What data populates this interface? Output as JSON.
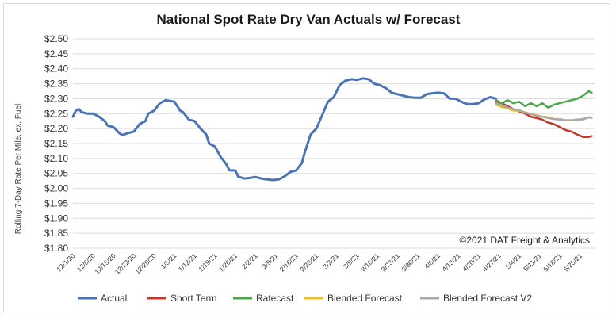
{
  "chart_data": {
    "type": "line",
    "title": "National Spot Rate Dry Van Actuals w/ Forecast",
    "ylabel": "Rolling 7-Day Rate Per Mile, ex. Fuel",
    "xlabel": "",
    "ylim": [
      1.8,
      2.5
    ],
    "y_ticks": [
      "$2.50",
      "$2.45",
      "$2.40",
      "$2.35",
      "$2.30",
      "$2.25",
      "$2.20",
      "$2.15",
      "$2.10",
      "$2.05",
      "$2.00",
      "$1.95",
      "$1.90",
      "$1.85",
      "$1.80"
    ],
    "x_ticks": [
      "12/1/20",
      "12/8/20",
      "12/15/20",
      "12/22/20",
      "12/29/20",
      "1/5/21",
      "1/12/21",
      "1/19/21",
      "1/26/21",
      "2/2/21",
      "2/9/21",
      "2/16/21",
      "2/23/21",
      "3/2/21",
      "3/9/21",
      "3/16/21",
      "3/23/21",
      "3/30/21",
      "4/6/21",
      "4/13/21",
      "4/20/21",
      "4/27/21",
      "5/4/21",
      "5/11/21",
      "5/18/21",
      "5/25/21"
    ],
    "x_start": "12/1/20",
    "x_end": "5/30/21",
    "grid": "horizontal",
    "legend_position": "bottom",
    "annotation": "©2021 DAT Freight & Analytics",
    "series": [
      {
        "name": "Actual",
        "color": "#4a74b4",
        "points": [
          [
            "12/1/20",
            2.24
          ],
          [
            "12/2/20",
            2.26
          ],
          [
            "12/3/20",
            2.265
          ],
          [
            "12/4/20",
            2.255
          ],
          [
            "12/6/20",
            2.25
          ],
          [
            "12/8/20",
            2.25
          ],
          [
            "12/10/20",
            2.24
          ],
          [
            "12/12/20",
            2.225
          ],
          [
            "12/13/20",
            2.21
          ],
          [
            "12/15/20",
            2.205
          ],
          [
            "12/17/20",
            2.185
          ],
          [
            "12/18/20",
            2.178
          ],
          [
            "12/20/20",
            2.185
          ],
          [
            "12/22/20",
            2.19
          ],
          [
            "12/24/20",
            2.215
          ],
          [
            "12/26/20",
            2.225
          ],
          [
            "12/27/20",
            2.25
          ],
          [
            "12/29/20",
            2.26
          ],
          [
            "12/31/20",
            2.285
          ],
          [
            "1/2/21",
            2.295
          ],
          [
            "1/5/21",
            2.29
          ],
          [
            "1/7/21",
            2.26
          ],
          [
            "1/8/21",
            2.255
          ],
          [
            "1/10/21",
            2.23
          ],
          [
            "1/12/21",
            2.225
          ],
          [
            "1/14/21",
            2.2
          ],
          [
            "1/16/21",
            2.18
          ],
          [
            "1/17/21",
            2.15
          ],
          [
            "1/19/21",
            2.14
          ],
          [
            "1/21/21",
            2.105
          ],
          [
            "1/23/21",
            2.08
          ],
          [
            "1/24/21",
            2.06
          ],
          [
            "1/26/21",
            2.06
          ],
          [
            "1/27/21",
            2.04
          ],
          [
            "1/29/21",
            2.033
          ],
          [
            "1/31/21",
            2.035
          ],
          [
            "2/2/21",
            2.038
          ],
          [
            "2/4/21",
            2.033
          ],
          [
            "2/6/21",
            2.03
          ],
          [
            "2/8/21",
            2.028
          ],
          [
            "2/10/21",
            2.03
          ],
          [
            "2/12/21",
            2.04
          ],
          [
            "2/14/21",
            2.055
          ],
          [
            "2/16/21",
            2.06
          ],
          [
            "2/18/21",
            2.085
          ],
          [
            "2/19/21",
            2.12
          ],
          [
            "2/21/21",
            2.18
          ],
          [
            "2/23/21",
            2.2
          ],
          [
            "2/25/21",
            2.245
          ],
          [
            "2/27/21",
            2.29
          ],
          [
            "3/1/21",
            2.305
          ],
          [
            "3/3/21",
            2.345
          ],
          [
            "3/5/21",
            2.36
          ],
          [
            "3/7/21",
            2.365
          ],
          [
            "3/9/21",
            2.363
          ],
          [
            "3/11/21",
            2.368
          ],
          [
            "3/13/21",
            2.365
          ],
          [
            "3/15/21",
            2.35
          ],
          [
            "3/17/21",
            2.345
          ],
          [
            "3/19/21",
            2.335
          ],
          [
            "3/21/21",
            2.32
          ],
          [
            "3/23/21",
            2.315
          ],
          [
            "3/25/21",
            2.31
          ],
          [
            "3/27/21",
            2.305
          ],
          [
            "3/29/21",
            2.303
          ],
          [
            "3/31/21",
            2.303
          ],
          [
            "4/2/21",
            2.315
          ],
          [
            "4/4/21",
            2.318
          ],
          [
            "4/6/21",
            2.32
          ],
          [
            "4/8/21",
            2.318
          ],
          [
            "4/10/21",
            2.3
          ],
          [
            "4/12/21",
            2.3
          ],
          [
            "4/14/21",
            2.29
          ],
          [
            "4/16/21",
            2.282
          ],
          [
            "4/18/21",
            2.282
          ],
          [
            "4/20/21",
            2.285
          ],
          [
            "4/22/21",
            2.298
          ],
          [
            "4/24/21",
            2.305
          ],
          [
            "4/26/21",
            2.3
          ]
        ]
      },
      {
        "name": "Short Term",
        "color": "#c0392b",
        "points": [
          [
            "4/26/21",
            2.29
          ],
          [
            "4/28/21",
            2.285
          ],
          [
            "4/30/21",
            2.275
          ],
          [
            "5/2/21",
            2.265
          ],
          [
            "5/4/21",
            2.258
          ],
          [
            "5/6/21",
            2.25
          ],
          [
            "5/8/21",
            2.24
          ],
          [
            "5/10/21",
            2.235
          ],
          [
            "5/12/21",
            2.23
          ],
          [
            "5/14/21",
            2.22
          ],
          [
            "5/16/21",
            2.215
          ],
          [
            "5/18/21",
            2.205
          ],
          [
            "5/20/21",
            2.195
          ],
          [
            "5/22/21",
            2.19
          ],
          [
            "5/24/21",
            2.18
          ],
          [
            "5/26/21",
            2.172
          ],
          [
            "5/28/21",
            2.172
          ],
          [
            "5/29/21",
            2.175
          ]
        ]
      },
      {
        "name": "Ratecast",
        "color": "#4aa84a",
        "points": [
          [
            "4/26/21",
            2.295
          ],
          [
            "4/28/21",
            2.285
          ],
          [
            "4/30/21",
            2.295
          ],
          [
            "5/2/21",
            2.285
          ],
          [
            "5/4/21",
            2.29
          ],
          [
            "5/6/21",
            2.275
          ],
          [
            "5/8/21",
            2.285
          ],
          [
            "5/10/21",
            2.275
          ],
          [
            "5/12/21",
            2.285
          ],
          [
            "5/14/21",
            2.27
          ],
          [
            "5/16/21",
            2.28
          ],
          [
            "5/18/21",
            2.285
          ],
          [
            "5/20/21",
            2.29
          ],
          [
            "5/22/21",
            2.295
          ],
          [
            "5/24/21",
            2.3
          ],
          [
            "5/26/21",
            2.31
          ],
          [
            "5/28/21",
            2.325
          ],
          [
            "5/29/21",
            2.32
          ]
        ]
      },
      {
        "name": "Blended Forecast",
        "color": "#e8c02a",
        "points": [
          [
            "4/26/21",
            2.28
          ],
          [
            "4/28/21",
            2.272
          ],
          [
            "4/30/21",
            2.268
          ],
          [
            "5/2/21",
            2.26
          ],
          [
            "5/4/21",
            2.26
          ],
          [
            "5/6/21",
            2.255
          ],
          [
            "5/8/21",
            2.248
          ],
          [
            "5/10/21",
            2.245
          ],
          [
            "5/12/21",
            2.24
          ],
          [
            "5/14/21",
            2.238
          ],
          [
            "5/16/21",
            2.232
          ],
          [
            "5/18/21",
            2.232
          ],
          [
            "5/20/21",
            2.228
          ],
          [
            "5/22/21",
            2.228
          ],
          [
            "5/24/21",
            2.23
          ],
          [
            "5/26/21",
            2.23
          ],
          [
            "5/28/21",
            2.238
          ],
          [
            "5/29/21",
            2.236
          ]
        ]
      },
      {
        "name": "Blended Forecast V2",
        "color": "#a9a9a9",
        "points": [
          [
            "4/26/21",
            2.285
          ],
          [
            "4/28/21",
            2.278
          ],
          [
            "4/30/21",
            2.27
          ],
          [
            "5/2/21",
            2.265
          ],
          [
            "5/4/21",
            2.262
          ],
          [
            "5/6/21",
            2.252
          ],
          [
            "5/8/21",
            2.25
          ],
          [
            "5/10/21",
            2.242
          ],
          [
            "5/12/21",
            2.24
          ],
          [
            "5/14/21",
            2.235
          ],
          [
            "5/16/21",
            2.232
          ],
          [
            "5/18/21",
            2.23
          ],
          [
            "5/20/21",
            2.228
          ],
          [
            "5/22/21",
            2.228
          ],
          [
            "5/24/21",
            2.23
          ],
          [
            "5/26/21",
            2.232
          ],
          [
            "5/28/21",
            2.238
          ],
          [
            "5/29/21",
            2.235
          ]
        ]
      }
    ]
  }
}
